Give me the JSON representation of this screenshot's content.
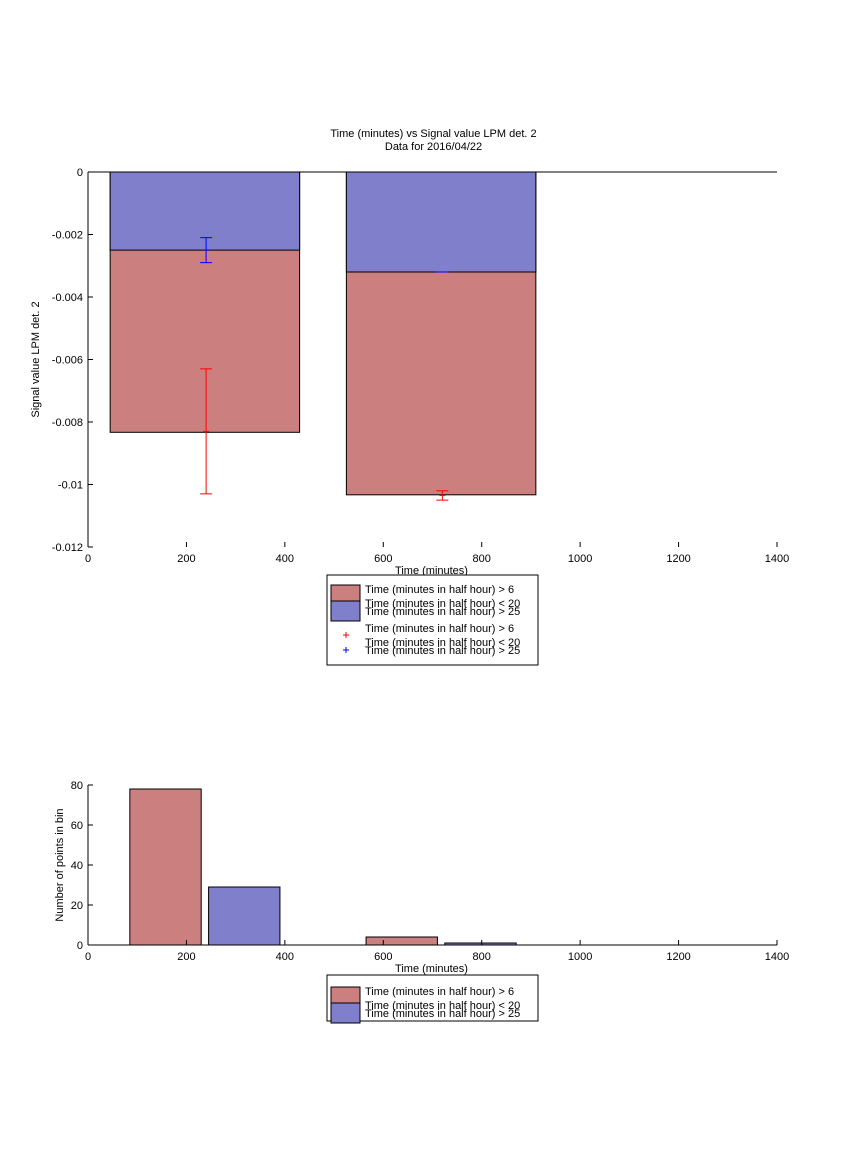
{
  "chart_data": [
    {
      "type": "bar",
      "title": "Time (minutes) vs Signal value LPM det. 2",
      "subtitle": "Data for 2016/04/22",
      "xlabel": "Time (minutes)",
      "ylabel": "Signal value LPM det. 2",
      "xlim": [
        0,
        1400
      ],
      "ylim": [
        -0.012,
        0
      ],
      "xticks": [
        "0",
        "200",
        "400",
        "600",
        "800",
        "1000",
        "1200",
        "1400"
      ],
      "yticks": [
        "0",
        "-0.002",
        "-0.004",
        "-0.006",
        "-0.008",
        "-0.01",
        "-0.012"
      ],
      "xtick_values": [
        0,
        200,
        400,
        600,
        800,
        1000,
        1200,
        1400
      ],
      "ytick_values": [
        0,
        -0.002,
        -0.004,
        -0.006,
        -0.008,
        -0.01,
        -0.012
      ],
      "legend_placement": "below",
      "bar_series": [
        {
          "label_lines": [
            "Time (minutes in half hour) > 6",
            "Time (minutes in half hour) < 20"
          ],
          "color": "#cc7f7f",
          "bars": [
            {
              "x0": 45,
              "x1": 430,
              "value": -0.00833
            },
            {
              "x0": 525,
              "x1": 910,
              "value": -0.01033
            }
          ]
        },
        {
          "label_lines": [
            "Time (minutes in half hour) > 25"
          ],
          "color": "#7f7fcc",
          "bars": [
            {
              "x0": 45,
              "x1": 430,
              "value": -0.0025
            },
            {
              "x0": 525,
              "x1": 910,
              "value": -0.0032
            }
          ]
        }
      ],
      "error_series": [
        {
          "label_lines": [
            "Time (minutes in half hour) > 6",
            "Time (minutes in half hour) < 20"
          ],
          "color": "#ff0000",
          "marker": "+",
          "points": [
            {
              "x": 240,
              "y": -0.0083,
              "low": -0.0103,
              "high": -0.0063
            },
            {
              "x": 720,
              "y": -0.01035,
              "low": -0.0105,
              "high": -0.0102
            }
          ]
        },
        {
          "label_lines": [
            "Time (minutes in half hour) > 25"
          ],
          "color": "#0000ff",
          "marker": "+",
          "points": [
            {
              "x": 240,
              "y": -0.0025,
              "low": -0.0029,
              "high": -0.0021
            },
            {
              "x": 720,
              "y": -0.0032,
              "low": -0.0032,
              "high": -0.0032
            }
          ]
        }
      ]
    },
    {
      "type": "bar",
      "title": "",
      "xlabel": "Time (minutes)",
      "ylabel": "Number of points in bin",
      "xlim": [
        0,
        1400
      ],
      "ylim": [
        0,
        80
      ],
      "xticks": [
        "0",
        "200",
        "400",
        "600",
        "800",
        "1000",
        "1200",
        "1400"
      ],
      "yticks": [
        "0",
        "20",
        "40",
        "60",
        "80"
      ],
      "xtick_values": [
        0,
        200,
        400,
        600,
        800,
        1000,
        1200,
        1400
      ],
      "ytick_values": [
        0,
        20,
        40,
        60,
        80
      ],
      "legend_placement": "below",
      "bar_series": [
        {
          "label_lines": [
            "Time (minutes in half hour) > 6",
            "Time (minutes in half hour) < 20"
          ],
          "color": "#cc7f7f",
          "bars": [
            {
              "x0": 85,
              "x1": 230,
              "value": 78
            },
            {
              "x0": 565,
              "x1": 710,
              "value": 4
            }
          ]
        },
        {
          "label_lines": [
            "Time (minutes in half hour) > 25"
          ],
          "color": "#7f7fcc",
          "bars": [
            {
              "x0": 245,
              "x1": 390,
              "value": 29
            },
            {
              "x0": 725,
              "x1": 870,
              "value": 1
            }
          ]
        }
      ],
      "error_series": []
    }
  ]
}
